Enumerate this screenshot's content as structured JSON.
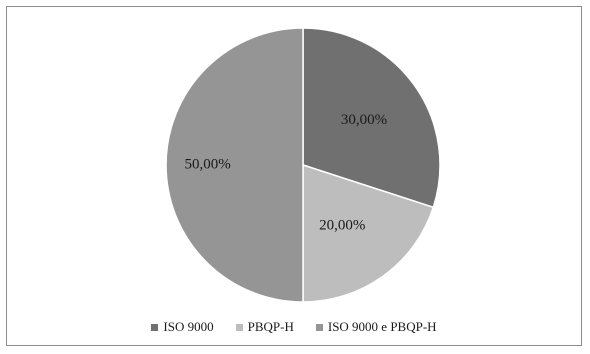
{
  "chart_data": {
    "type": "pie",
    "title": "",
    "slices": [
      {
        "label": "ISO 9000",
        "value": 30.0,
        "display": "30,00%",
        "color": "#707070"
      },
      {
        "label": "PBQP-H",
        "value": 20.0,
        "display": "20,00%",
        "color": "#bdbdbd"
      },
      {
        "label": "ISO 9000 e PBQP-H",
        "value": 50.0,
        "display": "50,00%",
        "color": "#959595"
      }
    ],
    "legend_position": "bottom",
    "start_angle": "12 o'clock, clockwise"
  }
}
